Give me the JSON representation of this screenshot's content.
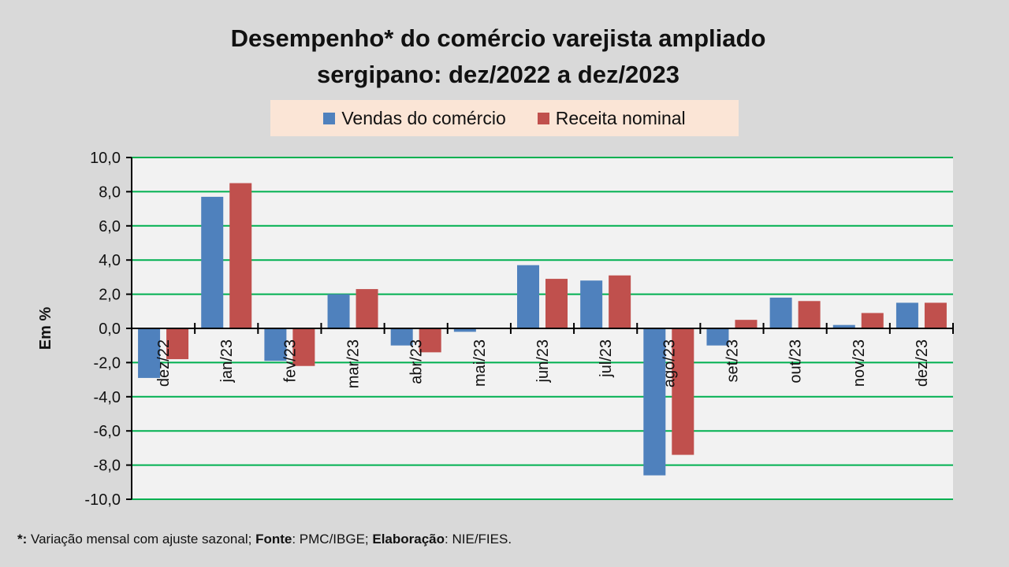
{
  "chart_data": {
    "type": "bar",
    "title_line1": "Desempenho* do comércio varejista ampliado",
    "title_line2": "sergipano: dez/2022 a dez/2023",
    "ylabel": "Em %",
    "xlabel": "",
    "ylim": [
      -10,
      10
    ],
    "yticks": [
      "10,0",
      "8,0",
      "6,0",
      "4,0",
      "2,0",
      "0,0",
      "-2,0",
      "-4,0",
      "-6,0",
      "-8,0",
      "-10,0"
    ],
    "ytick_values": [
      10,
      8,
      6,
      4,
      2,
      0,
      -2,
      -4,
      -6,
      -8,
      -10
    ],
    "grid": true,
    "legend_position": "top-center",
    "categories": [
      "dez/22",
      "jan/23",
      "fev/23",
      "mar/23",
      "abr/23",
      "mai/23",
      "jun/23",
      "jul/23",
      "ago/23",
      "set/23",
      "out/23",
      "nov/23",
      "dez/23"
    ],
    "series": [
      {
        "name": "Vendas do comércio",
        "color": "#4f81bd",
        "values": [
          -2.9,
          7.7,
          -1.9,
          2.0,
          -1.0,
          -0.2,
          3.7,
          2.8,
          -8.6,
          -1.0,
          1.8,
          0.2,
          1.5
        ]
      },
      {
        "name": "Receita nominal",
        "color": "#c0504d",
        "values": [
          -1.8,
          8.5,
          -2.2,
          2.3,
          -1.4,
          0.0,
          2.9,
          3.1,
          -7.4,
          0.5,
          1.6,
          0.9,
          1.5
        ]
      }
    ],
    "colors": {
      "plot_background": "#f2f2f2",
      "gridline": "#00b050",
      "page_background": "#d9d9d9",
      "legend_background": "#fbe5d6"
    }
  },
  "footnote": {
    "asterisk_label": "*:",
    "asterisk_text": " Variação mensal com ajuste sazonal; ",
    "source_label": "Fonte",
    "source_text": ": PMC/IBGE; ",
    "credit_label": "Elaboração",
    "credit_text": ": NIE/FIES."
  }
}
